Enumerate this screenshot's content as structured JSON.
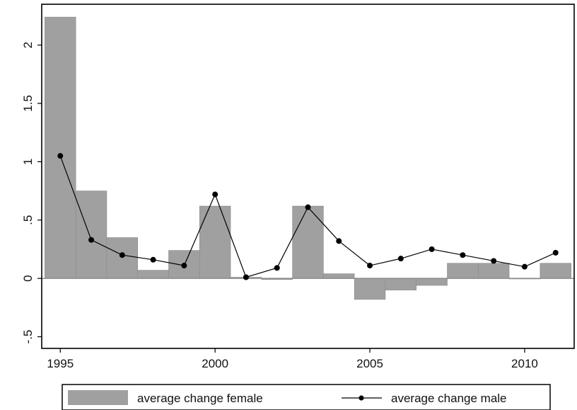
{
  "chart_data": {
    "type": "bar",
    "xlim": [
      1994.4,
      2011.6
    ],
    "ylim": [
      -0.6,
      2.35
    ],
    "x": [
      1995,
      1996,
      1997,
      1998,
      1999,
      2000,
      2001,
      2002,
      2003,
      2004,
      2005,
      2006,
      2007,
      2008,
      2009,
      2010,
      2011
    ],
    "xticks": [
      "1995",
      "2000",
      "2005",
      "2010"
    ],
    "yticks": [
      "-.5",
      "0",
      ".5",
      "1",
      "1.5",
      "2"
    ],
    "series": [
      {
        "name": "average change female",
        "type": "bar",
        "color": "#a0a0a0",
        "values": [
          2.24,
          0.75,
          0.35,
          0.07,
          0.24,
          0.62,
          0.01,
          -0.01,
          0.62,
          0.04,
          -0.18,
          -0.1,
          -0.06,
          0.13,
          0.13,
          0.0,
          0.13
        ]
      },
      {
        "name": "average change male",
        "type": "line",
        "color": "#000000",
        "values": [
          1.05,
          0.33,
          0.2,
          0.16,
          0.11,
          0.72,
          0.01,
          0.09,
          0.61,
          0.32,
          0.11,
          0.17,
          0.25,
          0.2,
          0.15,
          0.1,
          0.22
        ]
      }
    ],
    "zero_line": true,
    "grid": false,
    "legend_position": "bottom"
  }
}
